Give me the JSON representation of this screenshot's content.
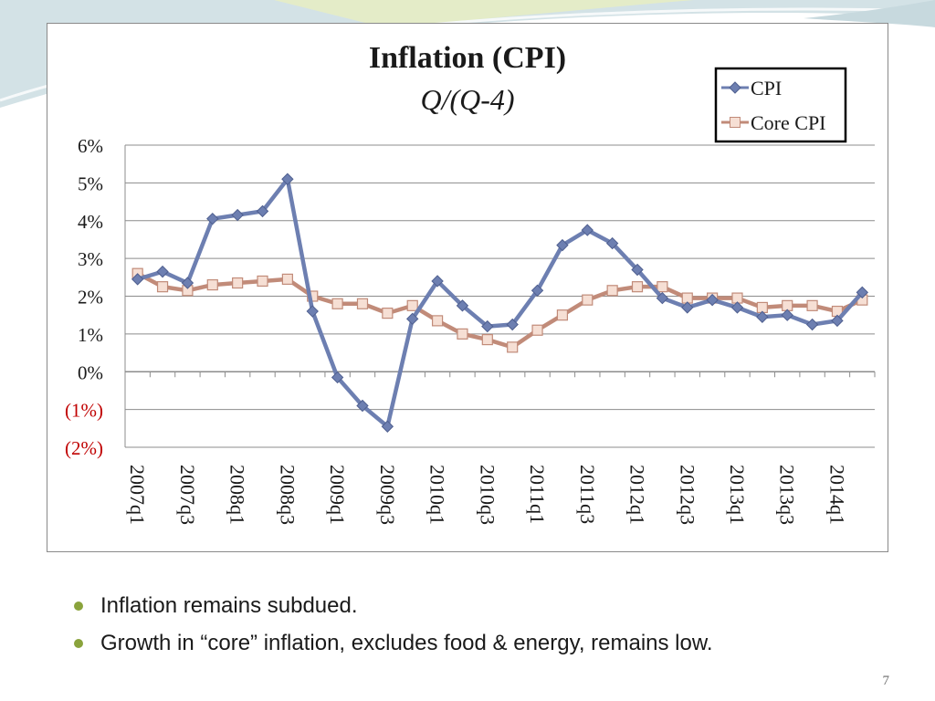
{
  "slide": {
    "bullets": [
      "Inflation remains subdued.",
      "Growth in “core” inflation, excludes food & energy, remains low."
    ],
    "page_number": "7",
    "accent_color": "#8aa33c"
  },
  "chart_data": {
    "type": "line",
    "title": "Inflation (CPI)",
    "subtitle": "Q/(Q-4)",
    "xlabel": "",
    "ylabel": "",
    "ylim": [
      -2,
      6
    ],
    "yticks": [
      6,
      5,
      4,
      3,
      2,
      1,
      0,
      -1,
      -2
    ],
    "ytick_labels": [
      "6%",
      "5%",
      "4%",
      "3%",
      "2%",
      "1%",
      "0%",
      "(1%)",
      "(2%)"
    ],
    "negative_label_color": "#c00000",
    "gridlines": true,
    "legend_position": "top-right",
    "categories": [
      "2007q1",
      "2007q2",
      "2007q3",
      "2007q4",
      "2008q1",
      "2008q2",
      "2008q3",
      "2008q4",
      "2009q1",
      "2009q2",
      "2009q3",
      "2009q4",
      "2010q1",
      "2010q2",
      "2010q3",
      "2010q4",
      "2011q1",
      "2011q2",
      "2011q3",
      "2011q4",
      "2012q1",
      "2012q2",
      "2012q3",
      "2012q4",
      "2013q1",
      "2013q2",
      "2013q3",
      "2013q4",
      "2014q1",
      "2014q2"
    ],
    "x_tick_labels": [
      "2007q1",
      "2007q3",
      "2008q1",
      "2008q3",
      "2009q1",
      "2009q3",
      "2010q1",
      "2010q3",
      "2011q1",
      "2011q3",
      "2012q1",
      "2012q3",
      "2013q1",
      "2013q3",
      "2014q1"
    ],
    "series": [
      {
        "name": "CPI",
        "color": "#6d7fb1",
        "marker": "diamond",
        "values": [
          2.45,
          2.65,
          2.35,
          4.05,
          4.15,
          4.25,
          5.1,
          1.6,
          -0.15,
          -0.9,
          -1.45,
          1.4,
          2.4,
          1.75,
          1.2,
          1.25,
          2.15,
          3.35,
          3.75,
          3.4,
          2.7,
          1.95,
          1.7,
          1.9,
          1.7,
          1.45,
          1.5,
          1.25,
          1.35,
          2.1
        ]
      },
      {
        "name": "Core CPI",
        "color": "#c18b79",
        "marker": "square",
        "values": [
          2.6,
          2.25,
          2.15,
          2.3,
          2.35,
          2.4,
          2.45,
          2.0,
          1.8,
          1.8,
          1.55,
          1.75,
          1.35,
          1.0,
          0.85,
          0.65,
          1.1,
          1.5,
          1.9,
          2.15,
          2.25,
          2.25,
          1.95,
          1.95,
          1.95,
          1.7,
          1.75,
          1.75,
          1.6,
          1.9
        ]
      }
    ]
  }
}
